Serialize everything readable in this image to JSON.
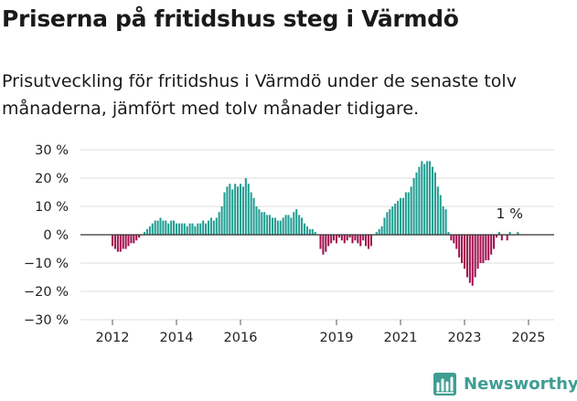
{
  "header": {
    "title": "Priserna på fritidshus steg i Värmdö",
    "subtitle": "Prisutveckling för fritidshus i Värmdö under de senaste tolv månaderna, jämfört med tolv månader tidigare."
  },
  "brand": {
    "name": "Newsworthy",
    "icon": "newsworthy-logo-icon",
    "color": "#3f9e93"
  },
  "chart_data": {
    "type": "bar",
    "colors": {
      "positive": "#1f9e93",
      "negative": "#a2114f",
      "zero_line": "#333333"
    },
    "y_ticks": [
      {
        "value": 30,
        "label": "30 %"
      },
      {
        "value": 20,
        "label": "20 %"
      },
      {
        "value": 10,
        "label": "10 %"
      },
      {
        "value": 0,
        "label": "0 %"
      },
      {
        "value": -10,
        "label": "−10 %"
      },
      {
        "value": -20,
        "label": "−20 %"
      },
      {
        "value": -30,
        "label": "−30 %"
      }
    ],
    "ylim": [
      -30,
      30
    ],
    "grid": true,
    "x_ticks": [
      {
        "value": 2012.0,
        "label": "2012"
      },
      {
        "value": 2014.0,
        "label": "2014"
      },
      {
        "value": 2016.0,
        "label": "2016"
      },
      {
        "value": 2019.0,
        "label": "2019"
      },
      {
        "value": 2021.0,
        "label": "2021"
      },
      {
        "value": 2023.0,
        "label": "2023"
      },
      {
        "value": 2025.0,
        "label": "2025"
      }
    ],
    "start_year": 2012,
    "start_month": 1,
    "annotation": {
      "label": "1 %"
    },
    "values": [
      -4,
      -5,
      -6,
      -6,
      -5,
      -5,
      -4,
      -3,
      -3,
      -2,
      -1,
      0,
      1,
      2,
      3,
      4,
      5,
      5,
      6,
      5,
      5,
      4,
      5,
      5,
      4,
      4,
      4,
      4,
      3,
      4,
      4,
      3,
      4,
      4,
      5,
      4,
      5,
      6,
      5,
      6,
      8,
      10,
      15,
      17,
      18,
      16,
      18,
      17,
      18,
      17,
      20,
      18,
      15,
      13,
      10,
      9,
      8,
      8,
      7,
      7,
      6,
      6,
      5,
      5,
      6,
      7,
      7,
      6,
      8,
      9,
      7,
      6,
      4,
      3,
      2,
      2,
      1,
      0,
      -5,
      -7,
      -6,
      -4,
      -3,
      -2,
      -3,
      -1,
      -2,
      -3,
      -2,
      -1,
      -3,
      -2,
      -3,
      -4,
      -2,
      -4,
      -5,
      -4,
      0,
      1,
      2,
      3,
      6,
      8,
      9,
      10,
      11,
      12,
      13,
      13,
      15,
      15,
      17,
      20,
      22,
      24,
      26,
      25,
      26,
      26,
      24,
      22,
      17,
      14,
      10,
      9,
      1,
      -2,
      -3,
      -5,
      -8,
      -10,
      -12,
      -15,
      -17,
      -18,
      -15,
      -12,
      -10,
      -10,
      -9,
      -9,
      -7,
      -5,
      -1,
      1,
      -2,
      0,
      -2,
      1,
      0,
      0,
      1,
      0
    ]
  }
}
